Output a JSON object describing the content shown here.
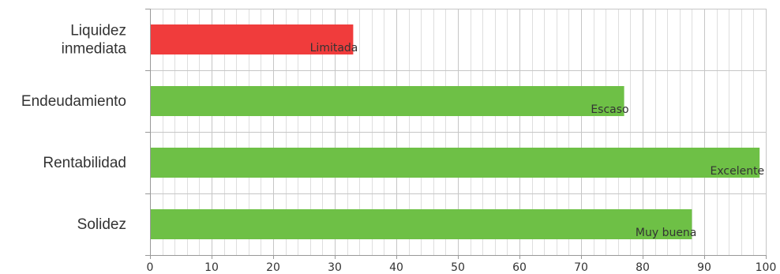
{
  "chart_data": {
    "type": "bar",
    "orientation": "horizontal",
    "categories": [
      [
        "Liquidez",
        "inmediata"
      ],
      [
        "Endeudamiento"
      ],
      [
        "Rentabilidad"
      ],
      [
        "Solidez"
      ]
    ],
    "values": [
      33,
      77,
      99,
      88
    ],
    "value_labels": [
      "Limitada",
      "Escaso",
      "Excelente",
      "Muy buena"
    ],
    "colors": [
      "#f03c3c",
      "#6ec046",
      "#6ec046",
      "#6ec046"
    ],
    "xlim": [
      0,
      100
    ],
    "xticks": [
      0,
      10,
      20,
      30,
      40,
      50,
      60,
      70,
      80,
      90,
      100
    ],
    "minor_step": 2,
    "grid": true,
    "title": "",
    "xlabel": "",
    "ylabel": ""
  }
}
